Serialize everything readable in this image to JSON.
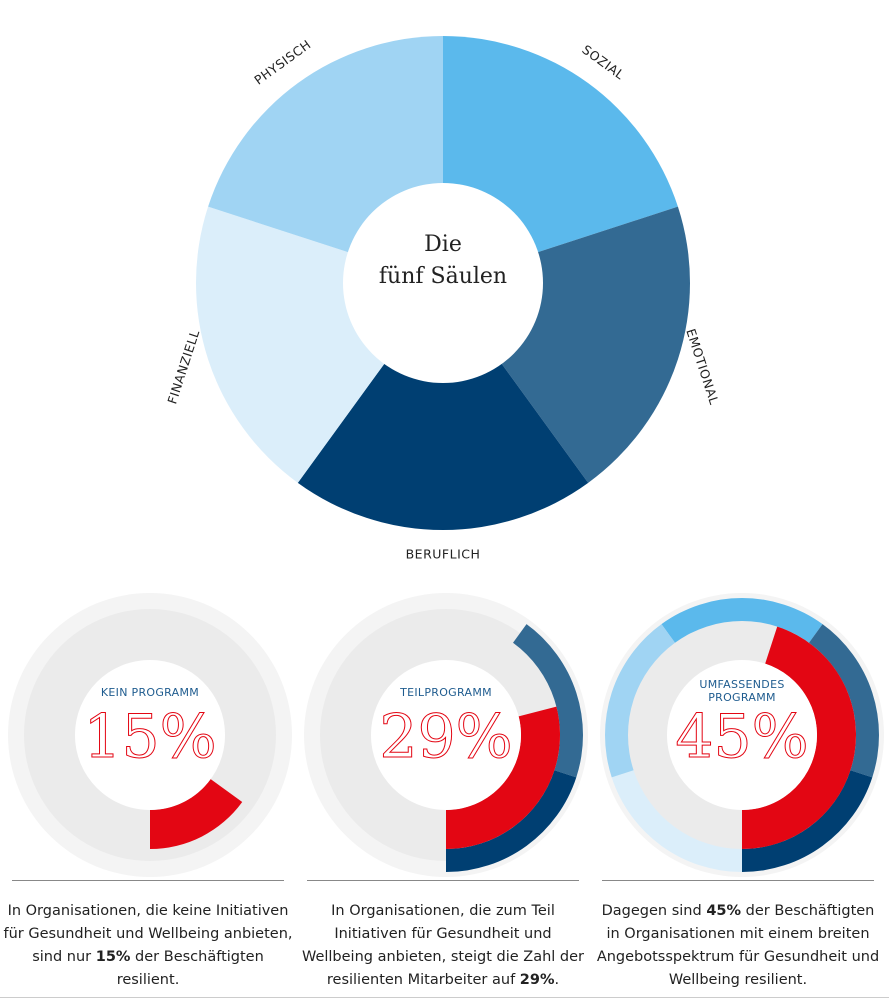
{
  "chart_data": [
    {
      "type": "pie",
      "title_lines": [
        "Die",
        "fünf Säulen"
      ],
      "categories": [
        "SOZIAL",
        "EMOTIONAL",
        "BERUFLICH",
        "FINANZIELL",
        "PHYSISCH"
      ],
      "values": [
        20,
        20,
        20,
        20,
        20
      ],
      "colors": [
        "#5bb9ec",
        "#336a93",
        "#003f72",
        "#dbeefa",
        "#a0d4f3"
      ]
    },
    {
      "type": "gauge",
      "label": "KEIN PROGRAMM",
      "value": 15,
      "value_label": "15%",
      "color": "#e30613",
      "ring_colors": [
        null,
        null,
        null,
        null,
        null
      ]
    },
    {
      "type": "gauge",
      "label": "TEILPROGRAMM",
      "value": 29,
      "value_label": "29%",
      "color": "#e30613",
      "ring_colors": [
        null,
        "#336a93",
        "#003f72",
        null,
        null
      ]
    },
    {
      "type": "gauge",
      "label": "UMFASSENDES PROGRAMM",
      "value": 45,
      "value_label": "45%",
      "color": "#e30613",
      "ring_colors": [
        "#5bb9ec",
        "#336a93",
        "#003f72",
        "#dbeefa",
        "#a0d4f3"
      ]
    }
  ],
  "captions": [
    [
      "In Organisationen, die keine Initiativen für Gesundheit und Wellbeing anbieten, sind nur ",
      "15%",
      " der Beschäftigten resilient."
    ],
    [
      "In Organisationen, die zum Teil Initiativen für Gesundheit und Wellbeing anbieten, steigt die Zahl der resilienten Mitarbeiter auf ",
      "29%",
      "."
    ],
    [
      "Dagegen sind ",
      "45%",
      " der Beschäftigten in Organisationen mit einem breiten Angebotsspektrum für Gesundheit und Wellbeing resilient."
    ]
  ]
}
